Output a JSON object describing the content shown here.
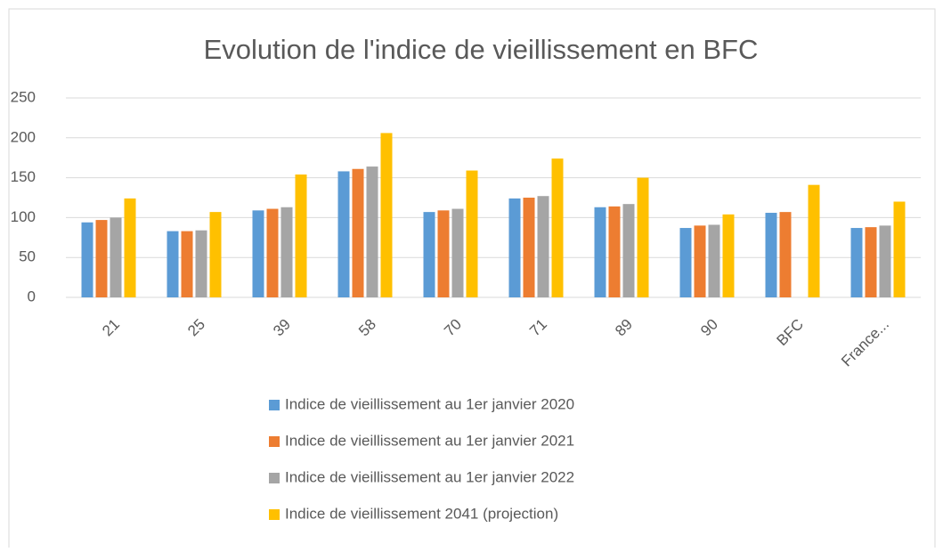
{
  "chart_data": {
    "type": "bar",
    "title": "Evolution de l'indice de vieillissement en BFC",
    "categories": [
      "21",
      "25",
      "39",
      "58",
      "70",
      "71",
      "89",
      "90",
      "BFC",
      "France..."
    ],
    "series": [
      {
        "name": "Indice de vieillissement au 1er janvier 2020",
        "color": "#5b9bd5",
        "values": [
          94,
          83,
          109,
          158,
          107,
          124,
          113,
          87,
          106,
          87
        ]
      },
      {
        "name": "Indice de vieillissement au 1er janvier 2021",
        "color": "#ed7d31",
        "values": [
          97,
          83,
          111,
          161,
          109,
          125,
          114,
          90,
          107,
          88
        ]
      },
      {
        "name": "Indice de vieillissement au 1er janvier 2022",
        "color": "#a5a5a5",
        "values": [
          100,
          84,
          113,
          164,
          111,
          127,
          117,
          91,
          null,
          90
        ]
      },
      {
        "name": "Indice de vieillissement 2041 (projection)",
        "color": "#ffc000",
        "values": [
          124,
          107,
          154,
          206,
          159,
          174,
          150,
          104,
          141,
          120
        ]
      }
    ],
    "ylim": [
      0,
      250
    ],
    "yticks": [
      0,
      50,
      100,
      150,
      200,
      250
    ],
    "grid": true,
    "legend": "bottom"
  }
}
